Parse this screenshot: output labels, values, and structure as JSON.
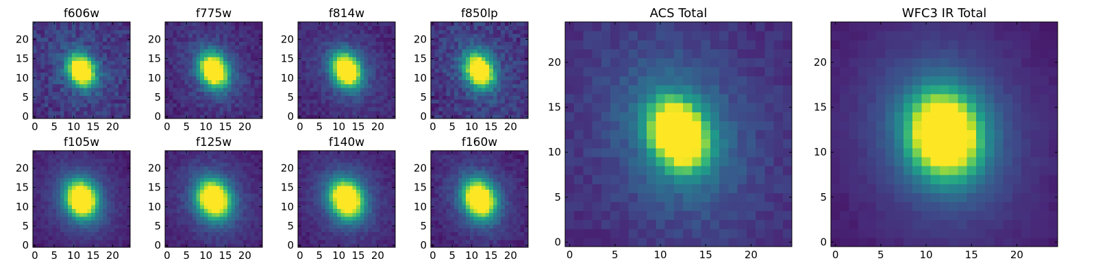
{
  "figure": {
    "colormap": "viridis",
    "colormap_stops": [
      "#440154",
      "#482878",
      "#3e4a89",
      "#31688e",
      "#26828e",
      "#1f9e89",
      "#35b779",
      "#6ece58",
      "#b5de2b",
      "#fde725"
    ]
  },
  "chart_data": [
    {
      "type": "heatmap",
      "title": "f606w",
      "grid_size": 25,
      "xlim": [
        0,
        24
      ],
      "ylim": [
        0,
        24
      ],
      "xticks": [
        0,
        5,
        10,
        15,
        20
      ],
      "yticks": [
        0,
        5,
        10,
        15,
        20
      ],
      "source": {
        "center": [
          12,
          12
        ],
        "sigma_x": 2.2,
        "sigma_y": 2.8,
        "rotation_deg": 25,
        "peak": 1.0,
        "background": 0.12,
        "noise": 0.07,
        "halo_amp": 0.1,
        "halo_scale": 2.6,
        "core_cut": 0.82,
        "seed": 11
      }
    },
    {
      "type": "heatmap",
      "title": "f775w",
      "grid_size": 25,
      "xlim": [
        0,
        24
      ],
      "ylim": [
        0,
        24
      ],
      "xticks": [
        0,
        5,
        10,
        15,
        20
      ],
      "yticks": [
        0,
        5,
        10,
        15,
        20
      ],
      "source": {
        "center": [
          12,
          12
        ],
        "sigma_x": 2.3,
        "sigma_y": 3.0,
        "rotation_deg": 25,
        "peak": 1.0,
        "background": 0.08,
        "noise": 0.05,
        "halo_amp": 0.14,
        "halo_scale": 2.6,
        "core_cut": 0.82,
        "seed": 23
      }
    },
    {
      "type": "heatmap",
      "title": "f814w",
      "grid_size": 25,
      "xlim": [
        0,
        24
      ],
      "ylim": [
        0,
        24
      ],
      "xticks": [
        0,
        5,
        10,
        15,
        20
      ],
      "yticks": [
        0,
        5,
        10,
        15,
        20
      ],
      "source": {
        "center": [
          12,
          12
        ],
        "sigma_x": 2.3,
        "sigma_y": 3.0,
        "rotation_deg": 25,
        "peak": 1.0,
        "background": 0.08,
        "noise": 0.045,
        "halo_amp": 0.14,
        "halo_scale": 2.6,
        "core_cut": 0.82,
        "seed": 37
      }
    },
    {
      "type": "heatmap",
      "title": "f850lp",
      "grid_size": 25,
      "xlim": [
        0,
        24
      ],
      "ylim": [
        0,
        24
      ],
      "xticks": [
        0,
        5,
        10,
        15,
        20
      ],
      "yticks": [
        0,
        5,
        10,
        15,
        20
      ],
      "source": {
        "center": [
          12,
          12
        ],
        "sigma_x": 2.2,
        "sigma_y": 3.0,
        "rotation_deg": 25,
        "peak": 1.0,
        "background": 0.11,
        "noise": 0.07,
        "halo_amp": 0.13,
        "halo_scale": 2.6,
        "core_cut": 0.82,
        "seed": 41
      }
    },
    {
      "type": "heatmap",
      "title": "f105w",
      "grid_size": 25,
      "xlim": [
        0,
        24
      ],
      "ylim": [
        0,
        24
      ],
      "xticks": [
        0,
        5,
        10,
        15,
        20
      ],
      "yticks": [
        0,
        5,
        10,
        15,
        20
      ],
      "source": {
        "center": [
          12,
          12
        ],
        "sigma_x": 2.6,
        "sigma_y": 3.2,
        "rotation_deg": 20,
        "peak": 1.0,
        "background": 0.06,
        "noise": 0.03,
        "halo_amp": 0.18,
        "halo_scale": 2.5,
        "core_cut": 0.82,
        "seed": 53
      }
    },
    {
      "type": "heatmap",
      "title": "f125w",
      "grid_size": 25,
      "xlim": [
        0,
        24
      ],
      "ylim": [
        0,
        24
      ],
      "xticks": [
        0,
        5,
        10,
        15,
        20
      ],
      "yticks": [
        0,
        5,
        10,
        15,
        20
      ],
      "source": {
        "center": [
          12,
          12
        ],
        "sigma_x": 2.7,
        "sigma_y": 3.3,
        "rotation_deg": 25,
        "peak": 1.0,
        "background": 0.06,
        "noise": 0.035,
        "halo_amp": 0.18,
        "halo_scale": 2.5,
        "core_cut": 0.82,
        "seed": 61
      }
    },
    {
      "type": "heatmap",
      "title": "f140w",
      "grid_size": 25,
      "xlim": [
        0,
        24
      ],
      "ylim": [
        0,
        24
      ],
      "xticks": [
        0,
        5,
        10,
        15,
        20
      ],
      "yticks": [
        0,
        5,
        10,
        15,
        20
      ],
      "source": {
        "center": [
          12,
          12
        ],
        "sigma_x": 2.7,
        "sigma_y": 3.3,
        "rotation_deg": 25,
        "peak": 1.0,
        "background": 0.06,
        "noise": 0.035,
        "halo_amp": 0.18,
        "halo_scale": 2.5,
        "core_cut": 0.82,
        "seed": 71
      }
    },
    {
      "type": "heatmap",
      "title": "f160w",
      "grid_size": 25,
      "xlim": [
        0,
        24
      ],
      "ylim": [
        0,
        24
      ],
      "xticks": [
        0,
        5,
        10,
        15,
        20
      ],
      "yticks": [
        0,
        5,
        10,
        15,
        20
      ],
      "source": {
        "center": [
          12,
          12
        ],
        "sigma_x": 2.6,
        "sigma_y": 3.3,
        "rotation_deg": 25,
        "peak": 1.0,
        "background": 0.06,
        "noise": 0.04,
        "halo_amp": 0.18,
        "halo_scale": 2.5,
        "core_cut": 0.82,
        "seed": 83
      }
    },
    {
      "type": "heatmap",
      "title": "ACS Total",
      "grid_size": 25,
      "xlim": [
        0,
        24
      ],
      "ylim": [
        0,
        24
      ],
      "xticks": [
        0,
        5,
        10,
        15,
        20
      ],
      "yticks": [
        0,
        5,
        10,
        15,
        20
      ],
      "source": {
        "center": [
          12,
          12
        ],
        "sigma_x": 1.9,
        "sigma_y": 2.5,
        "rotation_deg": 22,
        "peak": 1.0,
        "background": 0.1,
        "noise": 0.035,
        "halo_amp": 0.22,
        "halo_scale": 2.8,
        "core_cut": 0.78,
        "seed": 97
      }
    },
    {
      "type": "heatmap",
      "title": "WFC3 IR Total",
      "grid_size": 25,
      "xlim": [
        0,
        24
      ],
      "ylim": [
        0,
        24
      ],
      "xticks": [
        0,
        5,
        10,
        15,
        20
      ],
      "yticks": [
        0,
        5,
        10,
        15,
        20
      ],
      "source": {
        "center": [
          12,
          12
        ],
        "sigma_x": 2.5,
        "sigma_y": 3.0,
        "rotation_deg": 15,
        "peak": 1.0,
        "background": 0.05,
        "noise": 0.015,
        "halo_amp": 0.24,
        "halo_scale": 2.5,
        "core_cut": 0.78,
        "seed": 103
      }
    }
  ]
}
